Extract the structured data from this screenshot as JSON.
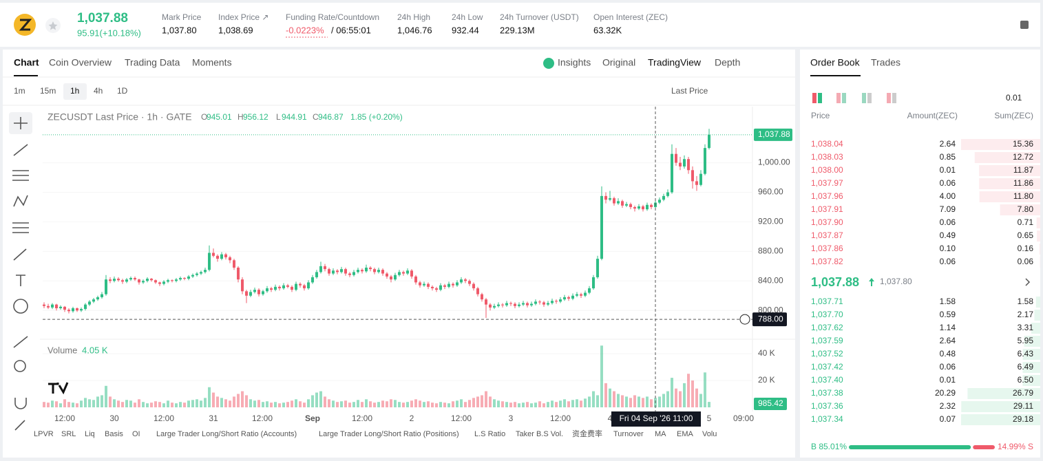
{
  "header": {
    "price": "1,037.88",
    "change": "95.91(+10.18%)",
    "stats": [
      {
        "label": "Mark Price",
        "value": "1,037.80"
      },
      {
        "label": "Index Price ↗",
        "value": "1,038.69"
      },
      {
        "label": "Funding Rate/Countdown",
        "value": "-0.0223%",
        "extra": "/ 06:55:01"
      },
      {
        "label": "24h High",
        "value": "1,046.76"
      },
      {
        "label": "24h Low",
        "value": "932.44"
      },
      {
        "label": "24h Turnover (USDT)",
        "value": "229.13M"
      },
      {
        "label": "Open Interest (ZEC)",
        "value": "63.32K"
      }
    ]
  },
  "tabs": [
    "Chart",
    "Coin Overview",
    "Trading Data",
    "Moments"
  ],
  "views": [
    "Insights",
    "Original",
    "TradingView",
    "Depth"
  ],
  "intervals": [
    "1m",
    "15m",
    "1h",
    "4h",
    "1D"
  ],
  "price_type": "Last Price",
  "indicators": [
    "LPVR",
    "SRL",
    "Liq",
    "Basis",
    "OI",
    "Large Trader Long/Short Ratio (Accounts)",
    "Large Trader Long/Short Ratio (Positions)",
    "L.S Ratio",
    "Taker B.S Vol.",
    "资金费率",
    "Turnover",
    "MA",
    "EMA",
    "Volu"
  ],
  "chart_data": {
    "type": "candlestick",
    "title": "ZECUSDT Last Price · 1h · GATE",
    "readout": [
      {
        "key": "O",
        "value": "945.01"
      },
      {
        "key": "H",
        "value": "956.12"
      },
      {
        "key": "L",
        "value": "944.91"
      },
      {
        "key": "C",
        "value": "946.87"
      }
    ],
    "readout_change": "1.85 (+0.20%)",
    "up_color": "#2ebd85",
    "down_color": "#ef5a6a",
    "ylim": [
      762,
      1076
    ],
    "yticks": [
      {
        "value": 800,
        "label": "800.00"
      },
      {
        "value": 840,
        "label": "840.00"
      },
      {
        "value": 880,
        "label": "880.00"
      },
      {
        "value": 920,
        "label": "920.00"
      },
      {
        "value": 960,
        "label": "960.00"
      },
      {
        "value": 1000,
        "label": "1,000.00"
      }
    ],
    "last_price": {
      "value": 1037.88,
      "label": "1,037.88"
    },
    "crosshair": {
      "value": 788,
      "label": "788.00",
      "time": "Fri 04 Sep '26  11:00"
    },
    "xtick_labels": [
      "12:00",
      "30",
      "12:00",
      "31",
      "12:00",
      "Sep",
      "12:00",
      "2",
      "12:00",
      "3",
      "12:00",
      "4",
      "5",
      "09:00"
    ],
    "volume_title": "Volume",
    "volume_value": {
      "value": 4050,
      "label": "4.05 K"
    },
    "volume_pill": "985.42",
    "volume_ylim": [
      0,
      48700
    ],
    "volume_yticks": [
      {
        "value": 20000,
        "label": "20 K"
      },
      {
        "value": 40000,
        "label": "40 K"
      }
    ],
    "candles": [
      [
        808,
        811,
        803,
        806
      ],
      [
        806,
        809,
        802,
        804
      ],
      [
        804,
        810,
        802,
        808
      ],
      [
        808,
        809,
        800,
        803
      ],
      [
        803,
        807,
        801,
        805
      ],
      [
        805,
        806,
        798,
        801
      ],
      [
        801,
        803,
        796,
        799
      ],
      [
        799,
        805,
        797,
        803
      ],
      [
        803,
        804,
        798,
        800
      ],
      [
        800,
        804,
        798,
        802
      ],
      [
        802,
        810,
        800,
        808
      ],
      [
        808,
        814,
        806,
        812
      ],
      [
        812,
        817,
        810,
        815
      ],
      [
        815,
        820,
        813,
        818
      ],
      [
        818,
        825,
        816,
        822
      ],
      [
        822,
        848,
        820,
        842
      ],
      [
        842,
        845,
        837,
        840
      ],
      [
        840,
        846,
        838,
        843
      ],
      [
        843,
        845,
        839,
        841
      ],
      [
        841,
        843,
        836,
        839
      ],
      [
        839,
        844,
        837,
        842
      ],
      [
        842,
        846,
        840,
        844
      ],
      [
        844,
        846,
        840,
        842
      ],
      [
        842,
        843,
        835,
        838
      ],
      [
        838,
        842,
        836,
        840
      ],
      [
        840,
        845,
        838,
        843
      ],
      [
        843,
        844,
        839,
        841
      ],
      [
        841,
        842,
        836,
        838
      ],
      [
        838,
        839,
        833,
        836
      ],
      [
        836,
        841,
        834,
        839
      ],
      [
        839,
        843,
        837,
        841
      ],
      [
        841,
        842,
        838,
        840
      ],
      [
        840,
        844,
        838,
        842
      ],
      [
        842,
        846,
        840,
        844
      ],
      [
        844,
        845,
        841,
        843
      ],
      [
        843,
        848,
        841,
        846
      ],
      [
        846,
        850,
        844,
        848
      ],
      [
        848,
        852,
        846,
        850
      ],
      [
        850,
        854,
        848,
        852
      ],
      [
        852,
        858,
        850,
        855
      ],
      [
        855,
        888,
        853,
        878
      ],
      [
        878,
        884,
        872,
        874
      ],
      [
        874,
        876,
        866,
        870
      ],
      [
        870,
        879,
        868,
        876
      ],
      [
        876,
        878,
        869,
        872
      ],
      [
        872,
        874,
        864,
        868
      ],
      [
        868,
        870,
        855,
        858
      ],
      [
        858,
        860,
        838,
        842
      ],
      [
        842,
        845,
        822,
        826
      ],
      [
        826,
        828,
        810,
        820
      ],
      [
        820,
        828,
        818,
        825
      ],
      [
        825,
        831,
        823,
        828
      ],
      [
        828,
        830,
        819,
        822
      ],
      [
        822,
        828,
        820,
        826
      ],
      [
        826,
        833,
        824,
        830
      ],
      [
        830,
        832,
        825,
        828
      ],
      [
        828,
        835,
        826,
        832
      ],
      [
        832,
        834,
        827,
        830
      ],
      [
        830,
        837,
        828,
        834
      ],
      [
        834,
        836,
        830,
        832
      ],
      [
        832,
        834,
        825,
        828
      ],
      [
        828,
        839,
        826,
        836
      ],
      [
        836,
        838,
        831,
        834
      ],
      [
        834,
        836,
        827,
        830
      ],
      [
        830,
        841,
        828,
        838
      ],
      [
        838,
        848,
        836,
        845
      ],
      [
        845,
        855,
        843,
        852
      ],
      [
        852,
        866,
        850,
        860
      ],
      [
        860,
        863,
        853,
        856
      ],
      [
        856,
        858,
        847,
        850
      ],
      [
        850,
        857,
        848,
        854
      ],
      [
        854,
        856,
        849,
        852
      ],
      [
        852,
        859,
        850,
        856
      ],
      [
        856,
        858,
        847,
        850
      ],
      [
        850,
        852,
        845,
        848
      ],
      [
        848,
        855,
        846,
        852
      ],
      [
        852,
        858,
        850,
        855
      ],
      [
        855,
        857,
        850,
        853
      ],
      [
        853,
        862,
        851,
        858
      ],
      [
        858,
        860,
        853,
        856
      ],
      [
        856,
        858,
        849,
        852
      ],
      [
        852,
        858,
        850,
        855
      ],
      [
        855,
        857,
        847,
        850
      ],
      [
        850,
        852,
        843,
        846
      ],
      [
        846,
        848,
        838,
        842
      ],
      [
        842,
        851,
        840,
        848
      ],
      [
        848,
        855,
        846,
        852
      ],
      [
        852,
        854,
        847,
        850
      ],
      [
        850,
        857,
        848,
        854
      ],
      [
        854,
        856,
        843,
        846
      ],
      [
        846,
        848,
        835,
        838
      ],
      [
        838,
        840,
        831,
        834
      ],
      [
        834,
        839,
        832,
        836
      ],
      [
        836,
        838,
        829,
        832
      ],
      [
        832,
        834,
        827,
        830
      ],
      [
        830,
        832,
        825,
        828
      ],
      [
        828,
        837,
        826,
        834
      ],
      [
        834,
        836,
        829,
        832
      ],
      [
        832,
        839,
        830,
        836
      ],
      [
        836,
        838,
        831,
        834
      ],
      [
        834,
        841,
        832,
        838
      ],
      [
        838,
        845,
        836,
        842
      ],
      [
        842,
        844,
        837,
        840
      ],
      [
        840,
        842,
        833,
        836
      ],
      [
        836,
        838,
        827,
        830
      ],
      [
        830,
        832,
        819,
        822
      ],
      [
        822,
        824,
        812,
        815
      ],
      [
        815,
        817,
        790,
        808
      ],
      [
        808,
        810,
        800,
        804
      ],
      [
        804,
        809,
        802,
        806
      ],
      [
        806,
        811,
        804,
        808
      ],
      [
        808,
        810,
        804,
        807
      ],
      [
        807,
        813,
        805,
        810
      ],
      [
        810,
        812,
        806,
        809
      ],
      [
        809,
        811,
        803,
        806
      ],
      [
        806,
        811,
        804,
        808
      ],
      [
        808,
        813,
        806,
        810
      ],
      [
        810,
        812,
        804,
        807
      ],
      [
        807,
        812,
        805,
        809
      ],
      [
        809,
        815,
        807,
        812
      ],
      [
        812,
        814,
        808,
        811
      ],
      [
        811,
        813,
        805,
        808
      ],
      [
        808,
        813,
        806,
        810
      ],
      [
        810,
        816,
        808,
        813
      ],
      [
        813,
        815,
        809,
        812
      ],
      [
        812,
        818,
        810,
        815
      ],
      [
        815,
        821,
        813,
        818
      ],
      [
        818,
        820,
        813,
        816
      ],
      [
        816,
        823,
        814,
        820
      ],
      [
        820,
        825,
        818,
        822
      ],
      [
        822,
        824,
        817,
        820
      ],
      [
        820,
        827,
        818,
        824
      ],
      [
        824,
        833,
        822,
        830
      ],
      [
        830,
        848,
        828,
        845
      ],
      [
        845,
        874,
        843,
        870
      ],
      [
        870,
        968,
        868,
        955
      ],
      [
        955,
        960,
        945,
        950
      ],
      [
        950,
        962,
        948,
        952
      ],
      [
        952,
        954,
        942,
        945
      ],
      [
        945,
        952,
        943,
        948
      ],
      [
        948,
        950,
        939,
        942
      ],
      [
        942,
        947,
        940,
        944
      ],
      [
        944,
        946,
        937,
        940
      ],
      [
        940,
        942,
        934,
        938
      ],
      [
        938,
        944,
        936,
        941
      ],
      [
        941,
        943,
        934,
        937
      ],
      [
        937,
        946,
        935,
        943
      ],
      [
        943,
        945,
        937,
        940
      ],
      [
        940,
        949,
        938,
        946
      ],
      [
        946,
        953,
        944,
        950
      ],
      [
        950,
        958,
        948,
        955
      ],
      [
        955,
        964,
        953,
        960
      ],
      [
        960,
        1025,
        958,
        1012
      ],
      [
        1012,
        1020,
        996,
        1000
      ],
      [
        1000,
        1008,
        990,
        995
      ],
      [
        995,
        1010,
        992,
        1005
      ],
      [
        1005,
        1008,
        985,
        990
      ],
      [
        990,
        995,
        965,
        975
      ],
      [
        975,
        982,
        962,
        970
      ],
      [
        970,
        990,
        968,
        985
      ],
      [
        985,
        1025,
        983,
        1020
      ],
      [
        1020,
        1046,
        1018,
        1037.88
      ]
    ],
    "volumes": [
      4000,
      3500,
      5000,
      4500,
      3000,
      6000,
      4000,
      3500,
      3000,
      5000,
      7000,
      6000,
      5500,
      8000,
      9000,
      16000,
      8000,
      6000,
      5000,
      4000,
      5500,
      5000,
      3500,
      6000,
      4000,
      3000,
      3500,
      4500,
      4000,
      3000,
      5000,
      3500,
      3000,
      4000,
      3500,
      5000,
      5500,
      6000,
      5000,
      7000,
      15000,
      11000,
      8000,
      7000,
      6000,
      5000,
      8000,
      10000,
      12000,
      9000,
      6000,
      5000,
      5500,
      4000,
      4500,
      3500,
      4000,
      3000,
      3500,
      4000,
      5000,
      6000,
      4500,
      3500,
      6000,
      9000,
      11000,
      12000,
      8000,
      6000,
      5000,
      4000,
      4500,
      5000,
      3500,
      4000,
      5500,
      4000,
      6000,
      4500,
      3500,
      4000,
      5000,
      4500,
      6000,
      5500,
      4000,
      3500,
      4000,
      5000,
      6000,
      5000,
      4000,
      4500,
      3500,
      3000,
      4000,
      3500,
      3000,
      4500,
      5000,
      6000,
      4000,
      5500,
      7000,
      8000,
      9000,
      12000,
      8000,
      6000,
      5000,
      4500,
      4000,
      3500,
      4000,
      3000,
      3500,
      4000,
      3000,
      3500,
      4500,
      3000,
      4000,
      5000,
      4000,
      5000,
      6000,
      4500,
      5500,
      6000,
      5000,
      6500,
      8000,
      12000,
      9000,
      46000,
      18000,
      14000,
      12000,
      10000,
      9000,
      8000,
      7000,
      9000,
      8000,
      7000,
      8000,
      6000,
      7000,
      8000,
      10000,
      12000,
      22000,
      14000,
      12000,
      18000,
      25000,
      20000,
      14000,
      10000,
      26000,
      4050
    ]
  },
  "order_book": {
    "tabs": [
      "Order Book",
      "Trades"
    ],
    "precision": "0.01",
    "columns": [
      "Price",
      "Amount(ZEC)",
      "Sum(ZEC)"
    ],
    "asks": [
      [
        "1,038.04",
        "2.64",
        "15.36"
      ],
      [
        "1,038.03",
        "0.85",
        "12.72"
      ],
      [
        "1,038.00",
        "0.01",
        "11.87"
      ],
      [
        "1,037.97",
        "0.06",
        "11.86"
      ],
      [
        "1,037.96",
        "4.00",
        "11.80"
      ],
      [
        "1,037.91",
        "7.09",
        "7.80"
      ],
      [
        "1,037.90",
        "0.06",
        "0.71"
      ],
      [
        "1,037.87",
        "0.49",
        "0.65"
      ],
      [
        "1,037.86",
        "0.10",
        "0.16"
      ],
      [
        "1,037.82",
        "0.06",
        "0.06"
      ]
    ],
    "mid": {
      "price": "1,037.88",
      "mark": "1,037.80"
    },
    "bids": [
      [
        "1,037.71",
        "1.58",
        "1.58"
      ],
      [
        "1,037.70",
        "0.59",
        "2.17"
      ],
      [
        "1,037.62",
        "1.14",
        "3.31"
      ],
      [
        "1,037.59",
        "2.64",
        "5.95"
      ],
      [
        "1,037.52",
        "0.48",
        "6.43"
      ],
      [
        "1,037.42",
        "0.06",
        "6.49"
      ],
      [
        "1,037.40",
        "0.01",
        "6.50"
      ],
      [
        "1,037.38",
        "20.29",
        "26.79"
      ],
      [
        "1,037.36",
        "2.32",
        "29.11"
      ],
      [
        "1,037.34",
        "0.07",
        "29.18"
      ]
    ],
    "buy_ratio": {
      "value": 85.01,
      "label": "B 85.01%"
    },
    "sell_ratio": {
      "value": 14.99,
      "label": "14.99% S"
    }
  }
}
